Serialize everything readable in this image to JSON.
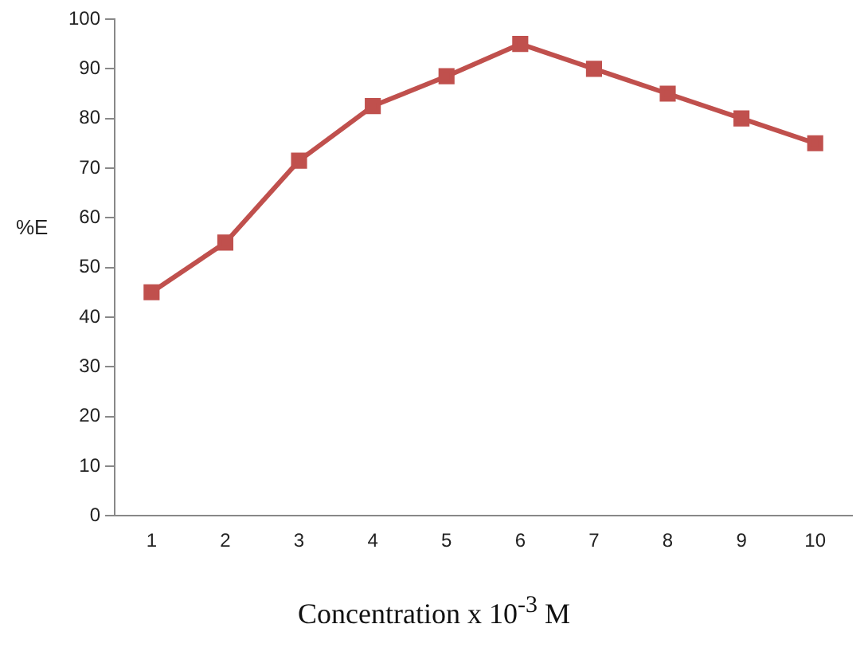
{
  "chart_data": {
    "type": "line",
    "xlabel": "Concentration x 10$^{-3}$ M",
    "ylabel": "%E",
    "categories": [
      "1",
      "2",
      "3",
      "4",
      "5",
      "6",
      "7",
      "8",
      "9",
      "10"
    ],
    "series": [
      {
        "color": "#c0504d",
        "values": [
          45,
          55,
          71.5,
          82.5,
          88.5,
          95,
          90,
          85,
          80,
          75
        ]
      }
    ],
    "ylim": [
      0,
      100
    ],
    "yticks": [
      0,
      10,
      20,
      30,
      40,
      50,
      60,
      70,
      80,
      90,
      100
    ],
    "grid": false,
    "legend": false,
    "marker": "square",
    "line_style": "solid"
  }
}
